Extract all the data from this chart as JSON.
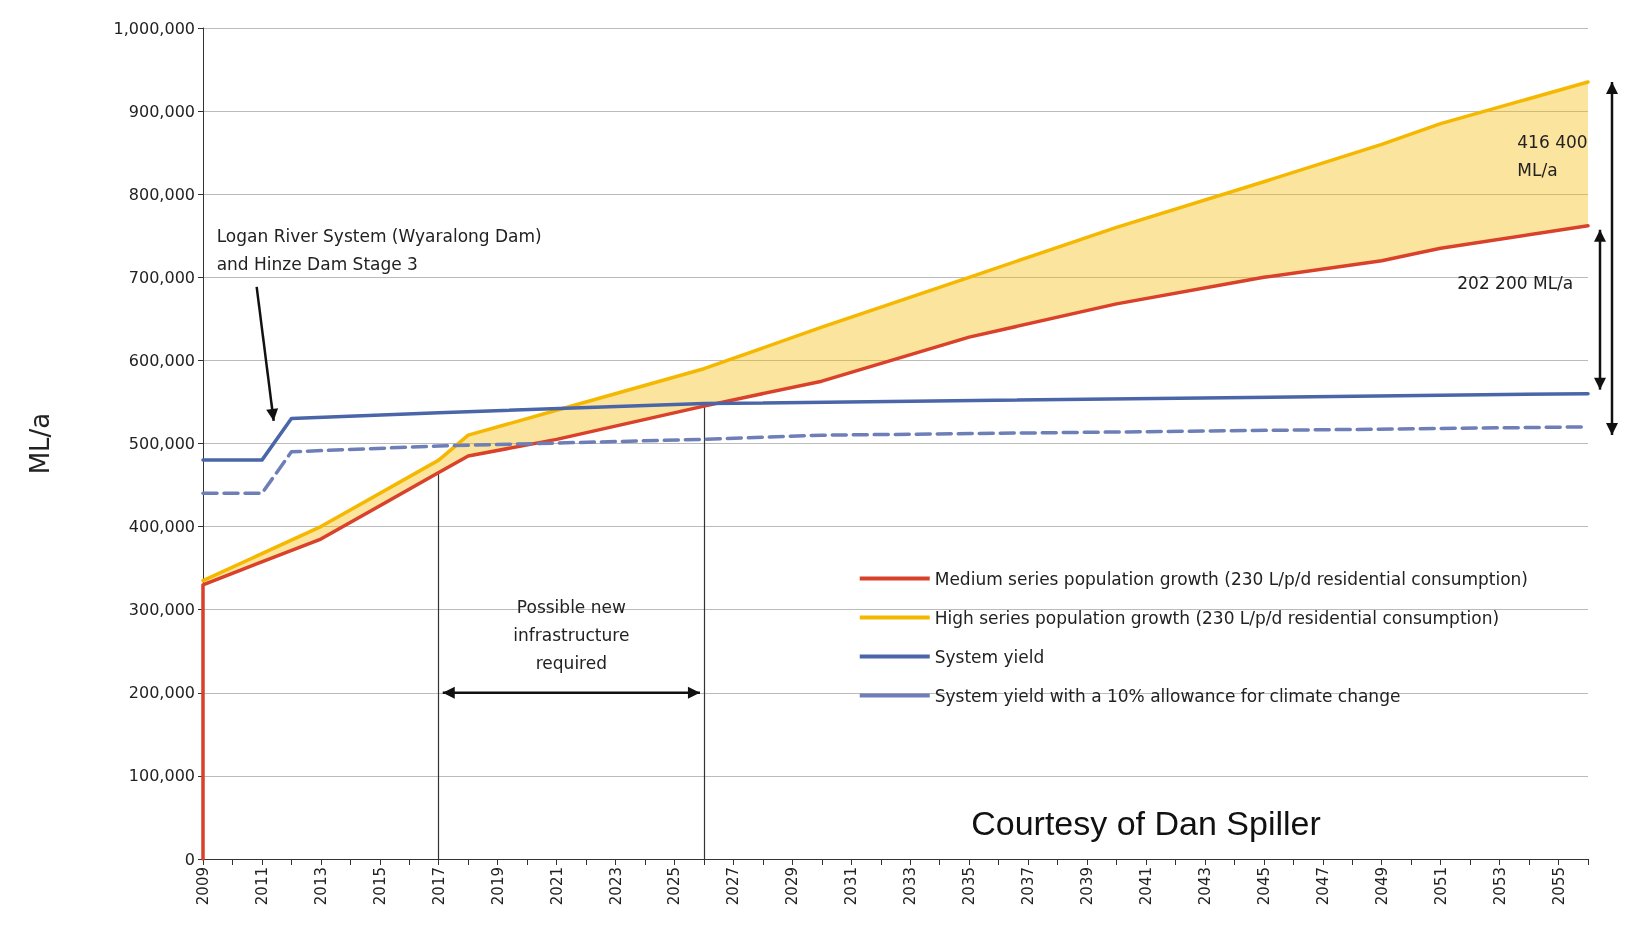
{
  "chart_data": {
    "type": "line",
    "ylabel": "ML/a",
    "xlim": [
      2009,
      2056
    ],
    "xticks": [
      2009,
      {
        "value": 2010,
        "label": null
      },
      2011,
      {
        "value": 2012,
        "label": null
      },
      2013,
      {
        "value": 2014,
        "label": null
      },
      2015,
      {
        "value": 2016,
        "label": null
      },
      2017,
      {
        "value": 2018,
        "label": null
      },
      2019,
      {
        "value": 2020,
        "label": null
      },
      2021,
      {
        "value": 2022,
        "label": null
      },
      2023,
      {
        "value": 2024,
        "label": null
      },
      2025,
      {
        "value": 2026,
        "label": null
      },
      2027,
      {
        "value": 2028,
        "label": null
      },
      2029,
      {
        "value": 2030,
        "label": null
      },
      2031,
      {
        "value": 2032,
        "label": null
      },
      2033,
      {
        "value": 2034,
        "label": null
      },
      2035,
      {
        "value": 2036,
        "label": null
      },
      2037,
      {
        "value": 2038,
        "label": null
      },
      2039,
      {
        "value": 2040,
        "label": null
      },
      2041,
      {
        "value": 2042,
        "label": null
      },
      2043,
      {
        "value": 2044,
        "label": null
      },
      2045,
      {
        "value": 2046,
        "label": null
      },
      2047,
      {
        "value": 2048,
        "label": null
      },
      2049,
      {
        "value": 2050,
        "label": null
      },
      2051,
      {
        "value": 2052,
        "label": null
      },
      2053,
      {
        "value": 2054,
        "label": null
      },
      2055,
      {
        "value": 2056,
        "label": null
      }
    ],
    "ylim": [
      0,
      1000000
    ],
    "yticks": [
      {
        "value": 0,
        "label": "0"
      },
      {
        "value": 100000,
        "label": "100,000"
      },
      {
        "value": 200000,
        "label": "200,000"
      },
      {
        "value": 300000,
        "label": "300,000"
      },
      {
        "value": 400000,
        "label": "400,000"
      },
      {
        "value": 500000,
        "label": "500,000"
      },
      {
        "value": 600000,
        "label": "600,000"
      },
      {
        "value": 700000,
        "label": "700,000"
      },
      {
        "value": 800000,
        "label": "800,000"
      },
      {
        "value": 900000,
        "label": "900,000"
      },
      {
        "value": 1000000,
        "label": "1,000,000"
      }
    ],
    "grid": "y",
    "legend": "bottom right",
    "marker": "none",
    "series": [
      {
        "name": "Medium series population growth (230 L/p/d residential consumption)",
        "color": "#d9412b",
        "x": [
          2009,
          2009,
          2013,
          2017,
          2018,
          2021,
          2026,
          2030,
          2035,
          2040,
          2045,
          2049,
          2051,
          2056
        ],
        "values": [
          0,
          330000,
          385000,
          465000,
          485000,
          505000,
          545000,
          575000,
          628000,
          668000,
          700000,
          720000,
          735000,
          762000
        ]
      },
      {
        "name": "High series population growth (230 L/p/d residential consumption)",
        "color": "#f5b800",
        "x": [
          2009,
          2013,
          2017,
          2018,
          2021,
          2026,
          2030,
          2035,
          2040,
          2045,
          2049,
          2051,
          2056
        ],
        "values": [
          335000,
          400000,
          480000,
          510000,
          540000,
          590000,
          640000,
          700000,
          760000,
          815000,
          860000,
          885000,
          935000
        ],
        "lower": [
          330000,
          385000,
          465000,
          485000,
          505000,
          545000,
          575000,
          628000,
          668000,
          700000,
          720000,
          735000,
          762000
        ],
        "upper": [
          335000,
          400000,
          480000,
          510000,
          540000,
          590000,
          640000,
          700000,
          760000,
          815000,
          860000,
          885000,
          935000
        ]
      },
      {
        "name": "System yield",
        "color": "#4a66a8",
        "x": [
          2009,
          2011,
          2012,
          2017,
          2026,
          2056
        ],
        "values": [
          480000,
          480000,
          530000,
          537000,
          548000,
          560000
        ]
      },
      {
        "name": "System yield with a 10% allowance for climate change",
        "color": "#6e7fb8",
        "line_style": "dashed",
        "x": [
          2009,
          2011,
          2012,
          2017,
          2026,
          2030,
          2056
        ],
        "values": [
          440000,
          440000,
          490000,
          497000,
          505000,
          510000,
          520000
        ]
      }
    ],
    "ref_lines": [
      {
        "axis": "x",
        "value": 2017,
        "color": "#333333"
      },
      {
        "axis": "x",
        "value": 2026,
        "color": "#333333"
      }
    ],
    "annotations": [
      "Logan River System (Wyaralong Dam)\nand Hinze Dam Stage 3",
      "Possible new\ninfrastructure\nrequired",
      "416 400\nML/a",
      "202 200 ML/a",
      "Courtesy of Dan Spiller"
    ]
  }
}
